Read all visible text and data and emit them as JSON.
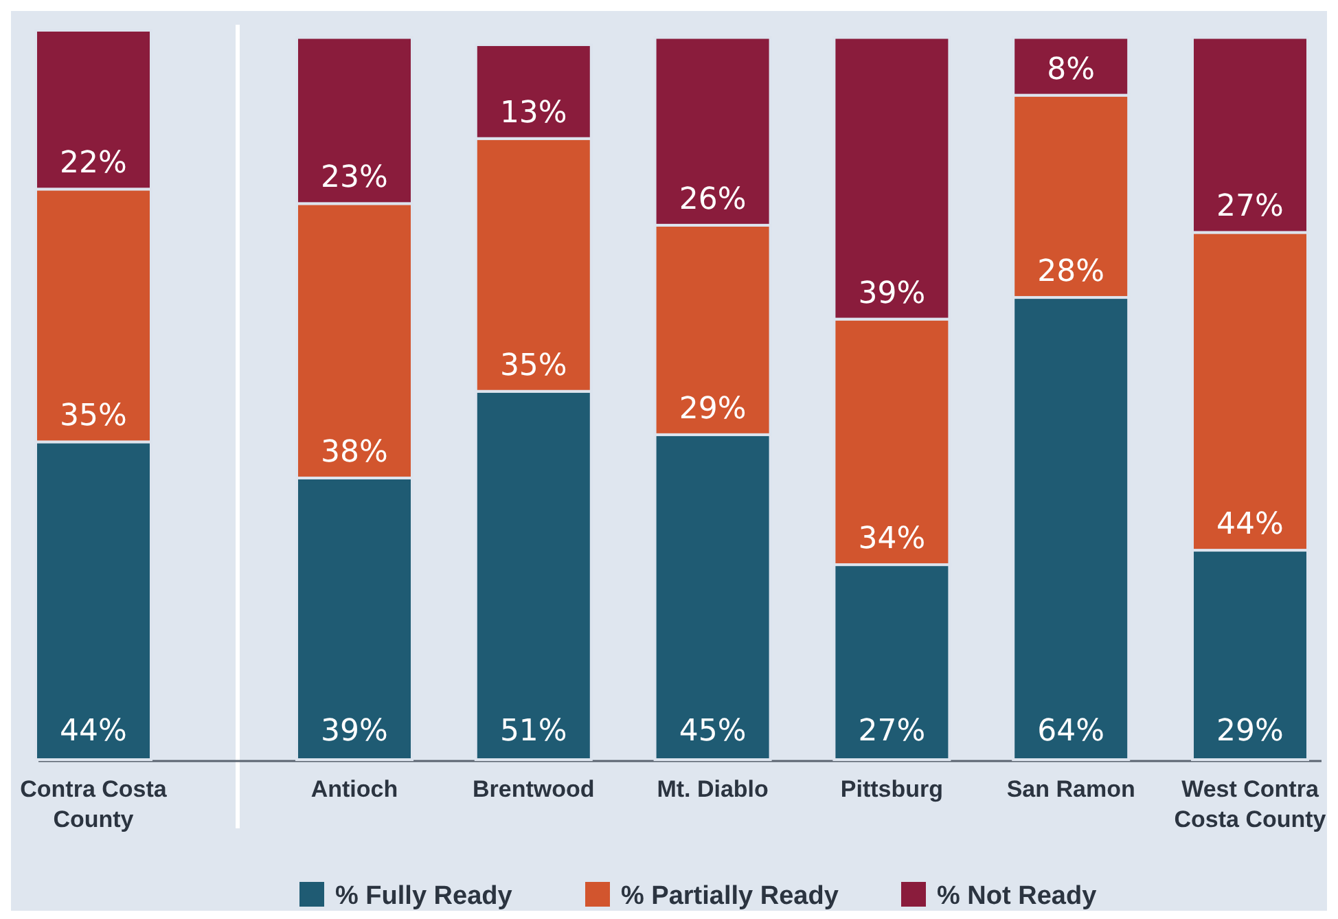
{
  "chart_data": {
    "type": "bar",
    "stacked": true,
    "data_labels": false,
    "legend": "bottom",
    "categories": [
      "Contra Costa County",
      "Antioch",
      "Brentwood",
      "Mt. Diablo",
      "Pittsburg",
      "San Ramon",
      "West Contra Costa County"
    ],
    "series": [
      {
        "name": "% Fully Ready",
        "color": "#1f5b73",
        "values": [
          44,
          39,
          51,
          45,
          27,
          64,
          29
        ],
        "value_labels": [
          "44%",
          "39%",
          "51%",
          "45%",
          "27%",
          "64%",
          "29%"
        ]
      },
      {
        "name": "% Partially Ready",
        "color": "#d2552e",
        "values": [
          35,
          38,
          35,
          29,
          34,
          28,
          44
        ],
        "value_labels": [
          "35%",
          "38%",
          "35%",
          "29%",
          "34%",
          "28%",
          "44%"
        ]
      },
      {
        "name": "% Not Ready",
        "color": "#8a1c3c",
        "values": [
          22,
          23,
          13,
          26,
          39,
          8,
          27
        ],
        "value_labels": [
          "22%",
          "23%",
          "13%",
          "26%",
          "39%",
          "8%",
          "27%"
        ]
      }
    ]
  }
}
